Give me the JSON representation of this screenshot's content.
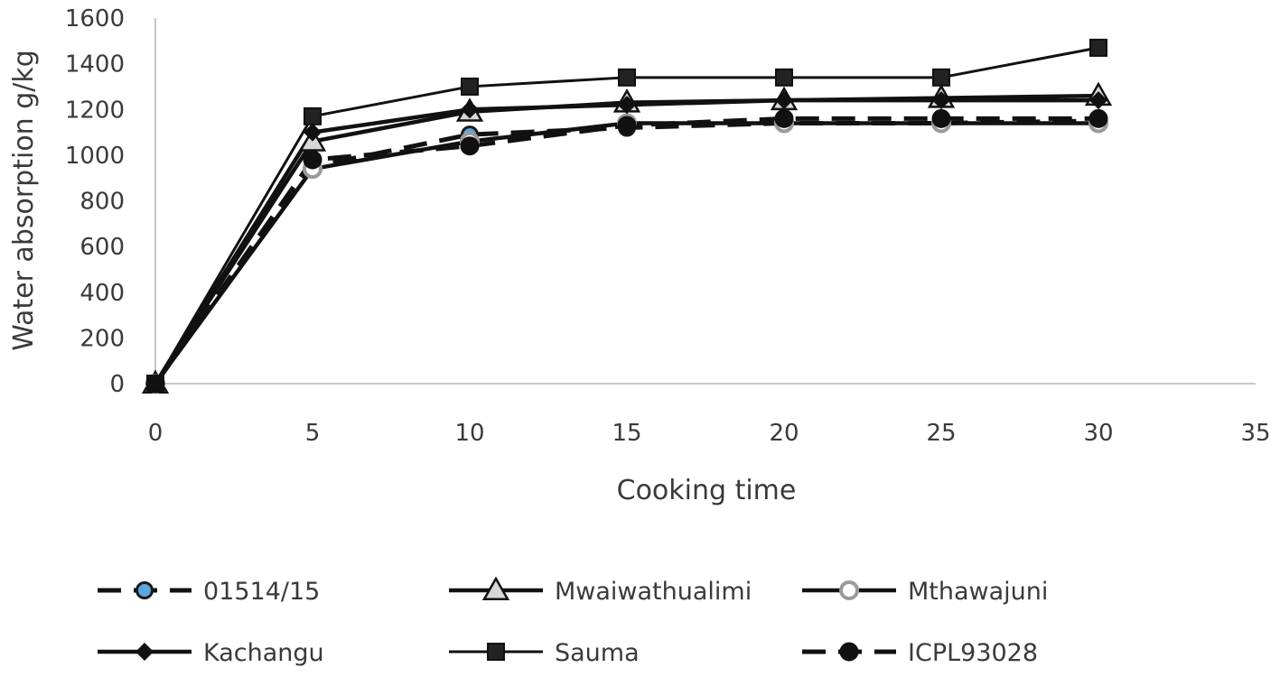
{
  "chart_data": {
    "type": "line",
    "xlabel": "Cooking time",
    "ylabel": "Water absorption g/kg",
    "xlim": [
      0,
      35
    ],
    "ylim": [
      0,
      1600
    ],
    "xticks": [
      0,
      5,
      10,
      15,
      20,
      25,
      30,
      35
    ],
    "yticks": [
      0,
      200,
      400,
      600,
      800,
      1000,
      1200,
      1400,
      1600
    ],
    "grid": false,
    "legend_position": "bottom",
    "x": [
      0,
      5,
      10,
      15,
      20,
      25,
      30
    ],
    "series": [
      {
        "name": "01514/15",
        "marker": "circle-blue",
        "line": "dashed",
        "values": [
          0,
          950,
          1090,
          1120,
          1140,
          1140,
          1150
        ]
      },
      {
        "name": "Mwaiwathualimi",
        "marker": "triangle",
        "line": "solid",
        "values": [
          0,
          1060,
          1190,
          1230,
          1240,
          1250,
          1260
        ]
      },
      {
        "name": "Mthawajuni",
        "marker": "circle-gray",
        "line": "solid",
        "values": [
          0,
          940,
          1060,
          1140,
          1140,
          1140,
          1140
        ]
      },
      {
        "name": "Kachangu",
        "marker": "diamond",
        "line": "solid",
        "values": [
          0,
          1100,
          1200,
          1220,
          1240,
          1240,
          1240
        ]
      },
      {
        "name": "Sauma",
        "marker": "square",
        "line": "solid-thin",
        "values": [
          0,
          1170,
          1300,
          1340,
          1340,
          1340,
          1470
        ]
      },
      {
        "name": "ICPL93028",
        "marker": "circle-black",
        "line": "dashed",
        "values": [
          0,
          980,
          1040,
          1130,
          1160,
          1160,
          1160
        ]
      }
    ]
  }
}
